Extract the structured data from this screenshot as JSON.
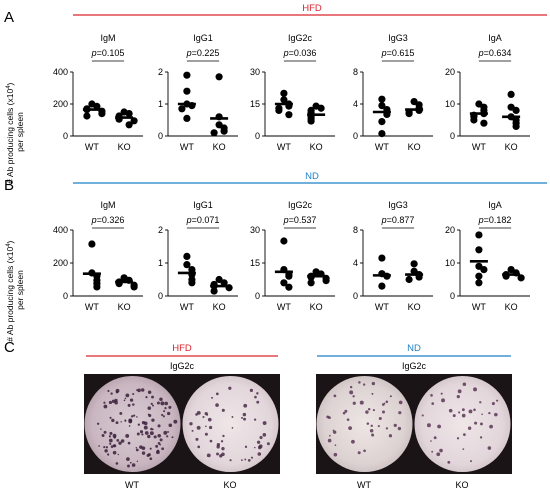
{
  "panel_labels": {
    "a": "A",
    "b": "B",
    "c": "C"
  },
  "colors": {
    "hfd": "#d9262e",
    "nd": "#1f80c8",
    "dot": "#000000",
    "axis": "#000000"
  },
  "ylabel_line1": "# Ab producing cells (x10",
  "ylabel_sup": "4",
  "ylabel_close": ")",
  "ylabel_line2": "per spleen",
  "chart_data": [
    {
      "row": "A",
      "group": "HFD",
      "panels": [
        {
          "title": "IgM",
          "type": "scatter",
          "pvalue": "p=0.105",
          "ylim": [
            0,
            400
          ],
          "yticks": [
            "0",
            "200",
            "400"
          ],
          "tick_values": [
            0,
            200,
            400
          ],
          "categories": [
            "WT",
            "KO"
          ],
          "series": [
            {
              "name": "WT",
              "mean": 165,
              "points": [
                200,
                185,
                170,
                165,
                155,
                140,
                125
              ]
            },
            {
              "name": "KO",
              "mean": 115,
              "points": [
                150,
                140,
                125,
                115,
                105,
                95,
                70
              ]
            }
          ]
        },
        {
          "title": "IgG1",
          "type": "scatter",
          "pvalue": "p=0.225",
          "ylim": [
            0,
            2
          ],
          "yticks": [
            "0",
            "1",
            "2"
          ],
          "tick_values": [
            0,
            1,
            2
          ],
          "categories": [
            "WT",
            "KO"
          ],
          "series": [
            {
              "name": "WT",
              "mean": 1.0,
              "points": [
                1.9,
                1.4,
                1.0,
                0.95,
                0.85,
                0.55
              ]
            },
            {
              "name": "KO",
              "mean": 0.55,
              "points": [
                1.85,
                0.6,
                0.35,
                0.25,
                0.15,
                0.1
              ]
            }
          ]
        },
        {
          "title": "IgG2c",
          "type": "scatter",
          "pvalue": "p=0.036",
          "ylim": [
            0,
            30
          ],
          "yticks": [
            "0",
            "15",
            "30"
          ],
          "tick_values": [
            0,
            15,
            30
          ],
          "categories": [
            "WT",
            "KO"
          ],
          "series": [
            {
              "name": "WT",
              "mean": 15,
              "points": [
                20,
                17,
                15,
                14,
                13,
                12,
                10
              ]
            },
            {
              "name": "KO",
              "mean": 10,
              "points": [
                14,
                13,
                12,
                11,
                10,
                9,
                8,
                7
              ]
            }
          ]
        },
        {
          "title": "IgG3",
          "type": "scatter",
          "pvalue": "p=0.615",
          "ylim": [
            0,
            8
          ],
          "yticks": [
            "0",
            "4",
            "8"
          ],
          "tick_values": [
            0,
            4,
            8
          ],
          "categories": [
            "WT",
            "KO"
          ],
          "series": [
            {
              "name": "WT",
              "mean": 3.0,
              "points": [
                4.6,
                3.8,
                3.3,
                2.7,
                1.8,
                0.3
              ]
            },
            {
              "name": "KO",
              "mean": 3.3,
              "points": [
                4.3,
                3.9,
                3.5,
                3.2,
                3.0,
                2.8
              ]
            }
          ]
        },
        {
          "title": "IgA",
          "type": "scatter",
          "pvalue": "p=0.634",
          "ylim": [
            0,
            20
          ],
          "yticks": [
            "0",
            "10",
            "20"
          ],
          "tick_values": [
            0,
            10,
            20
          ],
          "categories": [
            "WT",
            "KO"
          ],
          "series": [
            {
              "name": "WT",
              "mean": 7,
              "points": [
                10,
                9,
                8,
                7,
                6.5,
                6,
                5,
                4
              ]
            },
            {
              "name": "KO",
              "mean": 6,
              "points": [
                13,
                9,
                8,
                6,
                5,
                4,
                3
              ]
            }
          ]
        }
      ]
    },
    {
      "row": "B",
      "group": "ND",
      "panels": [
        {
          "title": "IgM",
          "type": "scatter",
          "pvalue": "p=0.326",
          "ylim": [
            0,
            400
          ],
          "yticks": [
            "0",
            "200",
            "400"
          ],
          "tick_values": [
            0,
            200,
            400
          ],
          "categories": [
            "WT",
            "KO"
          ],
          "series": [
            {
              "name": "WT",
              "mean": 135,
              "points": [
                315,
                140,
                120,
                95,
                75,
                55
              ]
            },
            {
              "name": "KO",
              "mean": 85,
              "points": [
                110,
                95,
                85,
                75,
                65,
                55
              ]
            }
          ]
        },
        {
          "title": "IgG1",
          "type": "scatter",
          "pvalue": "p=0.071",
          "ylim": [
            0,
            2
          ],
          "yticks": [
            "0",
            "1",
            "2"
          ],
          "tick_values": [
            0,
            1,
            2
          ],
          "categories": [
            "WT",
            "KO"
          ],
          "series": [
            {
              "name": "WT",
              "mean": 0.7,
              "points": [
                1.2,
                0.95,
                0.8,
                0.65,
                0.5,
                0.4
              ]
            },
            {
              "name": "KO",
              "mean": 0.3,
              "points": [
                0.5,
                0.4,
                0.35,
                0.3,
                0.25,
                0.15
              ]
            }
          ]
        },
        {
          "title": "IgG2c",
          "type": "scatter",
          "pvalue": "p=0.537",
          "ylim": [
            0,
            30
          ],
          "yticks": [
            "0",
            "15",
            "30"
          ],
          "tick_values": [
            0,
            15,
            30
          ],
          "categories": [
            "WT",
            "KO"
          ],
          "series": [
            {
              "name": "WT",
              "mean": 11,
              "points": [
                25,
                12,
                10,
                9,
                6,
                4
              ]
            },
            {
              "name": "KO",
              "mean": 9,
              "points": [
                11,
                10,
                9,
                8.5,
                8,
                7,
                6
              ]
            }
          ]
        },
        {
          "title": "IgG3",
          "type": "scatter",
          "pvalue": "p=0.877",
          "ylim": [
            0,
            8
          ],
          "yticks": [
            "0",
            "4",
            "8"
          ],
          "tick_values": [
            0,
            4,
            8
          ],
          "categories": [
            "WT",
            "KO"
          ],
          "series": [
            {
              "name": "WT",
              "mean": 2.5,
              "points": [
                4.6,
                2.7,
                2.4,
                1.2
              ]
            },
            {
              "name": "KO",
              "mean": 2.6,
              "points": [
                3.9,
                3.0,
                2.6,
                2.3,
                2.0
              ]
            }
          ]
        },
        {
          "title": "IgA",
          "type": "scatter",
          "pvalue": "p=0.182",
          "ylim": [
            0,
            20
          ],
          "yticks": [
            "0",
            "10",
            "20"
          ],
          "tick_values": [
            0,
            10,
            20
          ],
          "categories": [
            "WT",
            "KO"
          ],
          "series": [
            {
              "name": "WT",
              "mean": 10.5,
              "points": [
                18.5,
                14,
                9,
                8,
                6,
                4
              ]
            },
            {
              "name": "KO",
              "mean": 6.5,
              "points": [
                8,
                7,
                6.5,
                6,
                5.5
              ]
            }
          ]
        }
      ]
    }
  ],
  "plates": [
    {
      "group": "HFD",
      "title": "IgG2c",
      "labels": [
        "WT",
        "KO"
      ]
    },
    {
      "group": "ND",
      "title": "IgG2c",
      "labels": [
        "WT",
        "KO"
      ]
    }
  ]
}
